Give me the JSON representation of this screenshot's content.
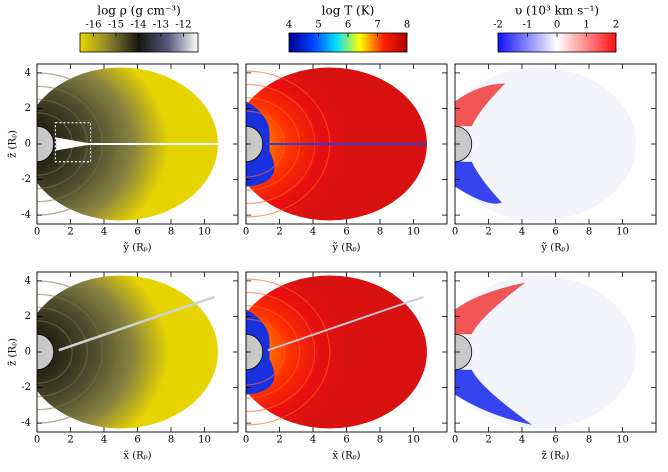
{
  "chart_data": [
    {
      "type": "image",
      "colormap": "density",
      "colorbar": {
        "label": "log ρ (g cm⁻³)",
        "lim": [
          -16.6,
          -11.35
        ],
        "ticks": [
          -16,
          -15,
          -14,
          -13,
          -12
        ],
        "colors": [
          "#e8d800",
          "#8a8030",
          "#151510",
          "#5a5a80",
          "#ffffff"
        ]
      },
      "xlabel": "ỹ (Rₚ)",
      "ylabel": "z̃ (Rₚ)",
      "xlim": [
        0,
        12
      ],
      "xticks": [
        0,
        2,
        4,
        6,
        8,
        10
      ],
      "ylim": [
        -4.5,
        4.5
      ],
      "yticks": [
        -4,
        -2,
        0,
        2,
        4
      ],
      "ytick_labels": true
    },
    {
      "type": "image",
      "colormap": "temperature",
      "colorbar": {
        "label": "log T (K)",
        "lim": [
          4,
          8
        ],
        "ticks": [
          4,
          5,
          6,
          7,
          8
        ],
        "colors": [
          "#000090",
          "#0040ff",
          "#00e0ff",
          "#ffff00",
          "#ff2000",
          "#b00000"
        ]
      },
      "xlabel": "ỹ (Rₚ)",
      "xlim": [
        0,
        12
      ],
      "xticks": [
        0,
        2,
        4,
        6,
        8,
        10
      ],
      "ylim": [
        -4.5,
        4.5
      ],
      "yticks": [
        -4,
        -2,
        0,
        2,
        4
      ],
      "ytick_labels": false
    },
    {
      "type": "image",
      "colormap": "velocity",
      "colorbar": {
        "label": "υ (10³ km s⁻¹)",
        "lim": [
          -2,
          2
        ],
        "ticks": [
          -2,
          -1,
          0,
          1,
          2
        ],
        "colors": [
          "#1010ff",
          "#ffffff",
          "#ff1010"
        ]
      },
      "xlabel": "ỹ (Rₚ)",
      "xlim": [
        0,
        12
      ],
      "xticks": [
        0,
        2,
        4,
        6,
        8,
        10
      ],
      "ylim": [
        -4.5,
        4.5
      ],
      "yticks": [
        -4,
        -2,
        0,
        2,
        4
      ],
      "ytick_labels": false
    },
    {
      "type": "image",
      "colormap": "density",
      "xlabel": "x̃ (Rₚ)",
      "ylabel": "z̃ (Rₚ)",
      "xlim": [
        0,
        12
      ],
      "xticks": [
        0,
        2,
        4,
        6,
        8,
        10
      ],
      "ylim": [
        -4.5,
        4.5
      ],
      "yticks": [
        -4,
        -2,
        0,
        2,
        4
      ],
      "ytick_labels": true
    },
    {
      "type": "image",
      "colormap": "temperature",
      "xlabel": "x̃ (Rₚ)",
      "xlim": [
        0,
        12
      ],
      "xticks": [
        0,
        2,
        4,
        6,
        8,
        10
      ],
      "ylim": [
        -4.5,
        4.5
      ],
      "yticks": [
        -4,
        -2,
        0,
        2,
        4
      ],
      "ytick_labels": false
    },
    {
      "type": "image",
      "colormap": "velocity",
      "xlabel": "z̃ (Rₚ)",
      "xlim": [
        0,
        12
      ],
      "xticks": [
        0,
        2,
        4,
        6,
        8,
        10
      ],
      "ylim": [
        -4.5,
        4.5
      ],
      "yticks": [
        -4,
        -2,
        0,
        2,
        4
      ],
      "ytick_labels": false
    }
  ]
}
